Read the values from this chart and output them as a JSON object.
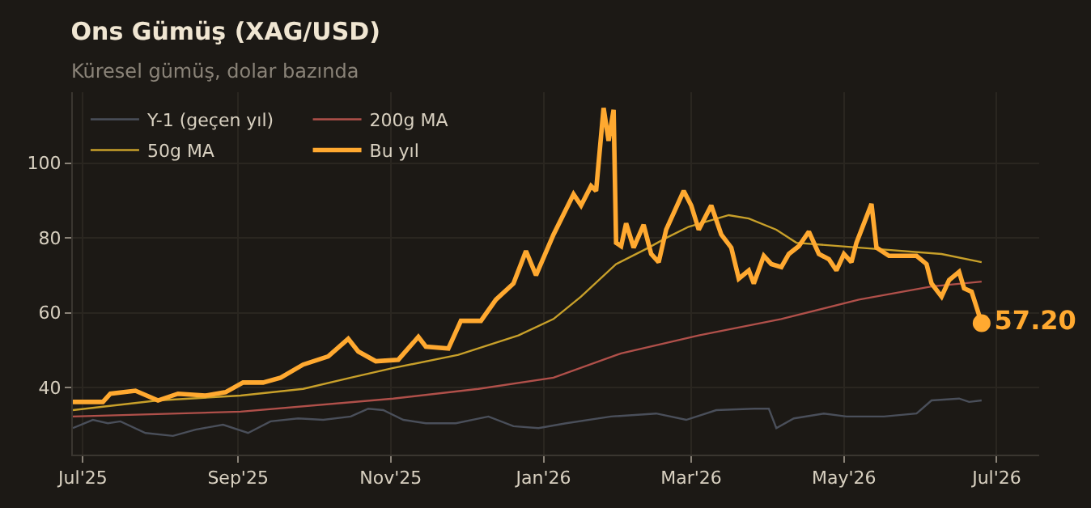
{
  "chart_data": {
    "type": "line",
    "title": "Ons Gümüş (XAG/USD)",
    "subtitle": "Küresel gümüş, dolar bazında",
    "xlim": [
      "2025-06-27",
      "2026-07-18"
    ],
    "xticks": [
      {
        "value": "2025-07-01",
        "label": "Jul'25"
      },
      {
        "value": "2025-09-01",
        "label": "Sep'25"
      },
      {
        "value": "2025-11-01",
        "label": "Nov'25"
      },
      {
        "value": "2026-01-01",
        "label": "Jan'26"
      },
      {
        "value": "2026-03-01",
        "label": "Mar'26"
      },
      {
        "value": "2026-05-01",
        "label": "May'26"
      },
      {
        "value": "2026-07-01",
        "label": "Jul'26"
      }
    ],
    "ylim": [
      22,
      119
    ],
    "yticks": [
      40,
      60,
      80,
      100
    ],
    "grid": true,
    "legend": "top left",
    "annotations": [
      {
        "text": "57.20",
        "x": "2026-06-25",
        "y": 57.2
      }
    ],
    "series": [
      {
        "name": "Y-1 (geçen yıl)",
        "color": "#4a4f5a",
        "x": [
          "2025-06-27",
          "2025-07-05",
          "2025-07-11",
          "2025-07-16",
          "2025-07-26",
          "2025-08-06",
          "2025-08-15",
          "2025-08-26",
          "2025-09-05",
          "2025-09-14",
          "2025-09-25",
          "2025-10-05",
          "2025-10-16",
          "2025-10-23",
          "2025-10-29",
          "2025-11-06",
          "2025-11-15",
          "2025-11-27",
          "2025-12-10",
          "2025-12-20",
          "2025-12-30",
          "2026-01-10",
          "2026-01-28",
          "2026-02-15",
          "2026-02-27",
          "2026-03-11",
          "2026-03-26",
          "2026-04-01",
          "2026-04-04",
          "2026-04-11",
          "2026-04-23",
          "2026-05-02",
          "2026-05-17",
          "2026-05-30",
          "2026-06-05",
          "2026-06-16",
          "2026-06-20",
          "2026-06-25"
        ],
        "values": [
          29.1,
          31.3,
          30.4,
          30.9,
          27.8,
          27,
          28.7,
          30,
          27.8,
          30.9,
          31.7,
          31.3,
          32.2,
          34.3,
          33.9,
          31.3,
          30.4,
          30.4,
          32.2,
          29.6,
          29.1,
          30.4,
          32.2,
          33,
          31.3,
          33.9,
          34.3,
          34.3,
          29.1,
          31.7,
          33,
          32.2,
          32.2,
          33,
          36.5,
          37,
          36.1,
          36.5
        ]
      },
      {
        "name": "200g MA",
        "color": "#b0504a",
        "x": [
          "2025-06-27",
          "2025-09-02",
          "2025-11-02",
          "2025-12-06",
          "2026-01-05",
          "2026-02-01",
          "2026-03-04",
          "2026-04-06",
          "2026-05-07",
          "2026-06-05",
          "2026-06-25"
        ],
        "values": [
          32.2,
          33.5,
          37,
          39.6,
          42.6,
          49.1,
          53.9,
          58.3,
          63.5,
          67,
          68.3
        ]
      },
      {
        "name": "50g MA",
        "color": "#c8a02a",
        "x": [
          "2025-06-27",
          "2025-07-31",
          "2025-09-02",
          "2025-09-27",
          "2025-10-16",
          "2025-11-02",
          "2025-11-28",
          "2025-12-22",
          "2026-01-05",
          "2026-01-16",
          "2026-01-30",
          "2026-02-12",
          "2026-02-19",
          "2026-02-28",
          "2026-03-16",
          "2026-03-24",
          "2026-04-04",
          "2026-04-12",
          "2026-05-07",
          "2026-06-09",
          "2026-06-25"
        ],
        "values": [
          33.9,
          36.5,
          37.8,
          39.6,
          42.6,
          45.2,
          48.7,
          53.9,
          58.3,
          64.3,
          73,
          77.4,
          80,
          83,
          86.1,
          85.2,
          82.2,
          78.7,
          77.4,
          75.7,
          73.5
        ]
      },
      {
        "name": "Bu yıl",
        "color": "#ffa930",
        "x": [
          "2025-06-27",
          "2025-07-09",
          "2025-07-12",
          "2025-07-22",
          "2025-07-31",
          "2025-08-08",
          "2025-08-19",
          "2025-08-27",
          "2025-09-03",
          "2025-09-11",
          "2025-09-18",
          "2025-09-27",
          "2025-10-07",
          "2025-10-15",
          "2025-10-19",
          "2025-10-26",
          "2025-11-04",
          "2025-11-12",
          "2025-11-15",
          "2025-11-24",
          "2025-11-29",
          "2025-12-07",
          "2025-12-13",
          "2025-12-20",
          "2025-12-25",
          "2025-12-29",
          "2026-01-05",
          "2026-01-13",
          "2026-01-16",
          "2026-01-20",
          "2026-01-22",
          "2026-01-25",
          "2026-01-27",
          "2026-01-29",
          "2026-01-30",
          "2026-02-01",
          "2026-02-03",
          "2026-02-06",
          "2026-02-10",
          "2026-02-13",
          "2026-02-16",
          "2026-02-19",
          "2026-02-26",
          "2026-03-01",
          "2026-03-04",
          "2026-03-09",
          "2026-03-13",
          "2026-03-17",
          "2026-03-20",
          "2026-03-24",
          "2026-03-26",
          "2026-03-30",
          "2026-04-02",
          "2026-04-06",
          "2026-04-09",
          "2026-04-13",
          "2026-04-17",
          "2026-04-21",
          "2026-04-25",
          "2026-04-28",
          "2026-05-01",
          "2026-05-04",
          "2026-05-06",
          "2026-05-12",
          "2026-05-14",
          "2026-05-19",
          "2026-05-30",
          "2026-06-03",
          "2026-06-05",
          "2026-06-09",
          "2026-06-12",
          "2026-06-16",
          "2026-06-18",
          "2026-06-21",
          "2026-06-25"
        ],
        "values": [
          36.1,
          36.1,
          38.3,
          39.1,
          36.5,
          38.3,
          37.8,
          38.7,
          41.3,
          41.3,
          42.6,
          46.1,
          48.3,
          53,
          49.6,
          47,
          47.4,
          53.5,
          50.9,
          50.4,
          57.8,
          57.8,
          63.5,
          67.8,
          76.5,
          70,
          80.9,
          91.7,
          88.7,
          93.9,
          92.6,
          114.8,
          106,
          114.3,
          78.7,
          77.8,
          83.9,
          77.4,
          83.5,
          75.7,
          73.5,
          82.2,
          92.6,
          88.7,
          82.2,
          88.7,
          80.9,
          77.4,
          69.1,
          71.3,
          67.8,
          75.2,
          73,
          72.2,
          75.7,
          77.8,
          81.7,
          75.7,
          74.3,
          71.3,
          75.7,
          73.5,
          78.7,
          89.1,
          77.4,
          75.2,
          75.2,
          73,
          67.8,
          64.3,
          68.7,
          70.9,
          66.5,
          65.6,
          57.2
        ]
      }
    ]
  }
}
